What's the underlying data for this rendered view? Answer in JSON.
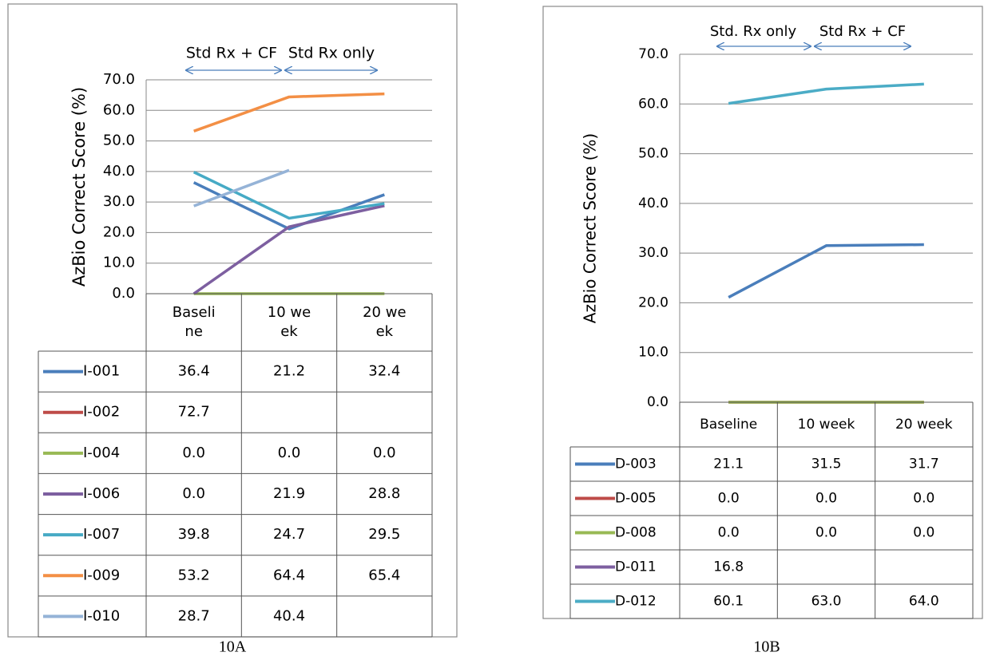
{
  "chart_data": [
    {
      "type": "line",
      "y_label": "AzBio Correct Score (%)",
      "caption": "10A",
      "annotations": [
        "Std Rx + CF",
        "Std Rx only"
      ],
      "categories": [
        "Baseline",
        "10 week",
        "20 week"
      ],
      "ylim": [
        0,
        70
      ],
      "yticks": [
        {
          "value": 0,
          "label": "0.0"
        },
        {
          "value": 10,
          "label": "10.0"
        },
        {
          "value": 20,
          "label": "20.0"
        },
        {
          "value": 30,
          "label": "30.0"
        },
        {
          "value": 40,
          "label": "40.0"
        },
        {
          "value": 50,
          "label": "50.0"
        },
        {
          "value": 60,
          "label": "60.0"
        },
        {
          "value": 70,
          "label": "70.0"
        }
      ],
      "grid": true,
      "series": [
        {
          "name": "I-001",
          "color": "#4a7ebb",
          "values": [
            36.4,
            21.2,
            32.4
          ],
          "value_labels": [
            "36.4",
            "21.2",
            "32.4"
          ]
        },
        {
          "name": "I-002",
          "color": "#be4b48",
          "values": [
            72.7,
            null,
            null
          ],
          "value_labels": [
            "72.7",
            null,
            null
          ]
        },
        {
          "name": "I-004",
          "color": "#98b954",
          "values": [
            0,
            0,
            0
          ],
          "value_labels": [
            "0.0",
            "0.0",
            "0.0"
          ]
        },
        {
          "name": "I-006",
          "color": "#7d5fa0",
          "values": [
            0,
            21.9,
            28.8
          ],
          "value_labels": [
            "0.0",
            "21.9",
            "28.8"
          ]
        },
        {
          "name": "I-007",
          "color": "#46aac5",
          "values": [
            39.8,
            24.7,
            29.5
          ],
          "value_labels": [
            "39.8",
            "24.7",
            "29.5"
          ]
        },
        {
          "name": "I-009",
          "color": "#f38f45",
          "values": [
            53.2,
            64.4,
            65.4
          ],
          "value_labels": [
            "53.2",
            "64.4",
            "65.4"
          ]
        },
        {
          "name": "I-010",
          "color": "#95b3d7",
          "values": [
            28.7,
            40.4,
            null
          ],
          "value_labels": [
            "28.7",
            "40.4",
            null
          ]
        }
      ]
    },
    {
      "type": "line",
      "y_label": "AzBio Correct Score (%)",
      "caption": "10B",
      "annotations": [
        "Std. Rx only",
        "Std Rx + CF"
      ],
      "categories": [
        "Baseline",
        "10 week",
        "20 week"
      ],
      "ylim": [
        0,
        70
      ],
      "yticks": [
        {
          "value": 0,
          "label": "0.0"
        },
        {
          "value": 10,
          "label": "10.0"
        },
        {
          "value": 20,
          "label": "20.0"
        },
        {
          "value": 30,
          "label": "30.0"
        },
        {
          "value": 40,
          "label": "40.0"
        },
        {
          "value": 50,
          "label": "50.0"
        },
        {
          "value": 60,
          "label": "60.0"
        },
        {
          "value": 70,
          "label": "70.0"
        }
      ],
      "grid": true,
      "series": [
        {
          "name": "D-003",
          "color": "#4a7ebb",
          "values": [
            21.1,
            31.5,
            31.7
          ],
          "value_labels": [
            "21.1",
            "31.5",
            "31.7"
          ]
        },
        {
          "name": "D-005",
          "color": "#be4b48",
          "values": [
            0,
            0,
            0
          ],
          "value_labels": [
            "0.0",
            "0.0",
            "0.0"
          ]
        },
        {
          "name": "D-008",
          "color": "#98b954",
          "values": [
            0,
            0,
            0
          ],
          "value_labels": [
            "0.0",
            "0.0",
            "0.0"
          ]
        },
        {
          "name": "D-011",
          "color": "#7d5fa0",
          "values": [
            16.8,
            null,
            null
          ],
          "value_labels": [
            "16.8",
            null,
            null
          ]
        },
        {
          "name": "D-012",
          "color": "#4bacc6",
          "values": [
            60.1,
            63,
            64
          ],
          "value_labels": [
            "60.1",
            "63.0",
            "64.0"
          ]
        }
      ]
    }
  ]
}
